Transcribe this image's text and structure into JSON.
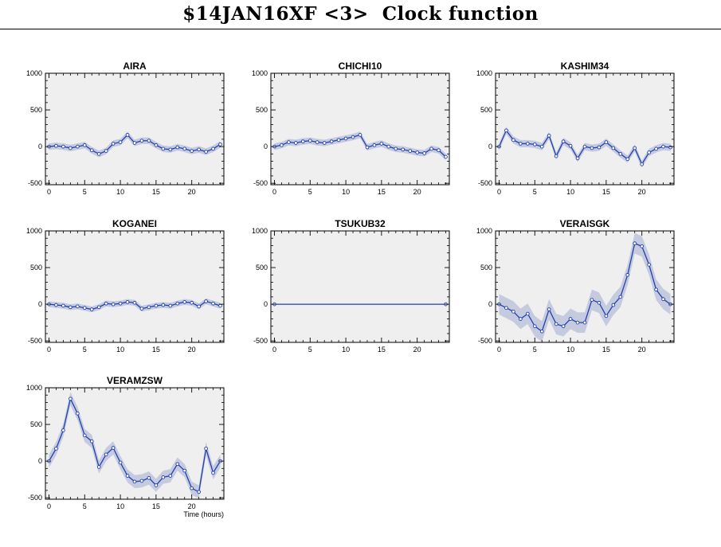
{
  "page": {
    "title": "$14JAN16XF <3>  Clock function"
  },
  "colors": {
    "plot_bg": "#efefef",
    "band": "#c5cade",
    "line": "#2241ad",
    "marker_fill": "#ffffff",
    "axis": "#000000"
  },
  "chart_data": [
    {
      "type": "line",
      "title": "AIRA",
      "xlim": [
        -0.5,
        24.5
      ],
      "ylim": [
        -520,
        1000
      ],
      "xticks": [
        0,
        5,
        10,
        15,
        20
      ],
      "yticks": [
        -500,
        0,
        500,
        1000
      ],
      "band_halfwidth": 45,
      "x": [
        0,
        1,
        2,
        3,
        4,
        5,
        6,
        7,
        8,
        9,
        10,
        11,
        12,
        13,
        14,
        15,
        16,
        17,
        18,
        19,
        20,
        21,
        22,
        23,
        24
      ],
      "y": [
        0,
        10,
        0,
        -20,
        0,
        20,
        -50,
        -100,
        -60,
        40,
        60,
        160,
        50,
        80,
        80,
        20,
        -30,
        -40,
        -10,
        -30,
        -60,
        -40,
        -70,
        -30,
        30
      ]
    },
    {
      "type": "line",
      "title": "CHICHI10",
      "xlim": [
        -0.5,
        24.5
      ],
      "ylim": [
        -520,
        1000
      ],
      "xticks": [
        0,
        5,
        10,
        15,
        20
      ],
      "yticks": [
        -500,
        0,
        500,
        1000
      ],
      "band_halfwidth": 45,
      "x": [
        0,
        1,
        2,
        3,
        4,
        5,
        6,
        7,
        8,
        9,
        10,
        11,
        12,
        13,
        14,
        15,
        16,
        17,
        18,
        19,
        20,
        21,
        22,
        23,
        24
      ],
      "y": [
        0,
        20,
        60,
        50,
        70,
        80,
        60,
        50,
        70,
        90,
        110,
        130,
        160,
        -10,
        20,
        40,
        0,
        -30,
        -40,
        -60,
        -80,
        -90,
        -30,
        -50,
        -140
      ]
    },
    {
      "type": "line",
      "title": "KASHIM34",
      "xlim": [
        -0.5,
        24.5
      ],
      "ylim": [
        -520,
        1000
      ],
      "xticks": [
        0,
        5,
        10,
        15,
        20
      ],
      "yticks": [
        -500,
        0,
        500,
        1000
      ],
      "band_halfwidth": 50,
      "x": [
        0,
        1,
        2,
        3,
        4,
        5,
        6,
        7,
        8,
        9,
        10,
        11,
        12,
        13,
        14,
        15,
        16,
        17,
        18,
        19,
        20,
        21,
        22,
        23,
        24
      ],
      "y": [
        0,
        220,
        90,
        40,
        40,
        30,
        0,
        150,
        -130,
        70,
        10,
        -160,
        0,
        -20,
        -10,
        60,
        -20,
        -100,
        -170,
        -20,
        -240,
        -80,
        -30,
        0,
        -10
      ]
    },
    {
      "type": "line",
      "title": "KOGANEI",
      "xlim": [
        -0.5,
        24.5
      ],
      "ylim": [
        -520,
        1000
      ],
      "xticks": [
        0,
        5,
        10,
        15,
        20
      ],
      "yticks": [
        -500,
        0,
        500,
        1000
      ],
      "band_halfwidth": 40,
      "x": [
        0,
        1,
        2,
        3,
        4,
        5,
        6,
        7,
        8,
        9,
        10,
        11,
        12,
        13,
        14,
        15,
        16,
        17,
        18,
        19,
        20,
        21,
        22,
        23,
        24
      ],
      "y": [
        0,
        -10,
        -20,
        -40,
        -30,
        -50,
        -70,
        -40,
        10,
        0,
        10,
        30,
        20,
        -60,
        -40,
        -20,
        -10,
        -20,
        10,
        30,
        20,
        -30,
        40,
        10,
        -20
      ]
    },
    {
      "type": "line",
      "title": "TSUKUB32",
      "xlim": [
        -0.5,
        24.5
      ],
      "ylim": [
        -520,
        1000
      ],
      "xticks": [
        0,
        5,
        10,
        15,
        20
      ],
      "yticks": [
        -500,
        0,
        500,
        1000
      ],
      "band_halfwidth": 0,
      "x": [
        0,
        24
      ],
      "y": [
        0,
        0
      ]
    },
    {
      "type": "line",
      "title": "VERAISGK",
      "xlim": [
        -0.5,
        24.5
      ],
      "ylim": [
        -520,
        1000
      ],
      "xticks": [
        0,
        5,
        10,
        15,
        20
      ],
      "yticks": [
        -500,
        0,
        500,
        1000
      ],
      "band_halfwidth": 140,
      "x": [
        0,
        1,
        2,
        3,
        4,
        5,
        6,
        7,
        8,
        9,
        10,
        11,
        12,
        13,
        14,
        15,
        16,
        17,
        18,
        19,
        20,
        21,
        22,
        23,
        24
      ],
      "y": [
        0,
        -50,
        -100,
        -200,
        -130,
        -300,
        -370,
        -70,
        -270,
        -300,
        -200,
        -250,
        -250,
        60,
        20,
        -160,
        -10,
        100,
        400,
        830,
        790,
        540,
        200,
        70,
        0
      ]
    },
    {
      "type": "line",
      "title": "VERAMZSW",
      "xlim": [
        -0.5,
        24.5
      ],
      "ylim": [
        -520,
        1000
      ],
      "xticks": [
        0,
        5,
        10,
        15,
        20
      ],
      "yticks": [
        -500,
        0,
        500,
        1000
      ],
      "band_halfwidth": 90,
      "x": [
        0,
        1,
        2,
        3,
        4,
        5,
        6,
        7,
        8,
        9,
        10,
        11,
        12,
        13,
        14,
        15,
        16,
        17,
        18,
        19,
        20,
        21,
        22,
        23,
        24
      ],
      "y": [
        0,
        170,
        420,
        850,
        650,
        350,
        270,
        -80,
        90,
        180,
        -20,
        -200,
        -280,
        -270,
        -230,
        -330,
        -220,
        -200,
        -40,
        -130,
        -370,
        -420,
        170,
        -160,
        0
      ],
      "xlabel": "Time (hours)"
    }
  ]
}
